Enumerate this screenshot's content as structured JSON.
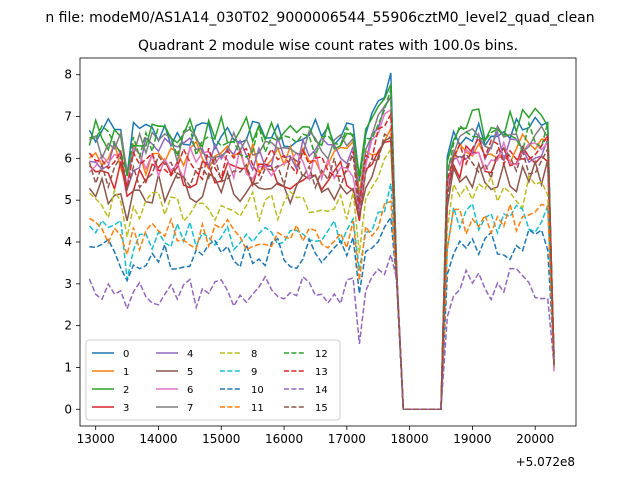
{
  "suptitle": "n file: modeM0/AS1A14_030T02_9000006544_55906cztM0_level2_quad_clean",
  "chart_data": {
    "type": "line",
    "title": "Quadrant 2 module wise count rates with 100.0s bins.",
    "xlabel": "",
    "ylabel": "",
    "x_offset_label": "+5.072e8",
    "xlim": [
      12750,
      20650
    ],
    "ylim": [
      -0.4,
      8.4
    ],
    "xticks": [
      13000,
      14000,
      15000,
      16000,
      17000,
      18000,
      19000,
      20000
    ],
    "yticks": [
      0,
      1,
      2,
      3,
      4,
      5,
      6,
      7,
      8
    ],
    "grid": false,
    "legend_position": "lower-left",
    "x_start": 12900,
    "x_step": 100,
    "gap_zero_range": [
      17900,
      18500
    ],
    "series": [
      {
        "name": "0",
        "color": "#1f77b4",
        "style": "solid",
        "base": 6.55,
        "peak": 8.0,
        "post": 6.7
      },
      {
        "name": "1",
        "color": "#ff7f0e",
        "style": "solid",
        "base": 6.0,
        "peak": 6.7,
        "post": 6.2
      },
      {
        "name": "2",
        "color": "#2ca02c",
        "style": "solid",
        "base": 6.6,
        "peak": 7.8,
        "post": 6.8
      },
      {
        "name": "3",
        "color": "#d62728",
        "style": "solid",
        "base": 5.6,
        "peak": 6.6,
        "post": 5.9
      },
      {
        "name": "4",
        "color": "#9467bd",
        "style": "solid",
        "base": 6.1,
        "peak": 7.4,
        "post": 6.3
      },
      {
        "name": "5",
        "color": "#8c564b",
        "style": "solid",
        "base": 5.3,
        "peak": 6.5,
        "post": 5.6
      },
      {
        "name": "6",
        "color": "#e377c2",
        "style": "solid",
        "base": 5.9,
        "peak": 7.2,
        "post": 6.1
      },
      {
        "name": "7",
        "color": "#7f7f7f",
        "style": "solid",
        "base": 6.3,
        "peak": 7.3,
        "post": 6.4
      },
      {
        "name": "8",
        "color": "#bcbd22",
        "style": "dashed",
        "base": 4.85,
        "peak": 6.2,
        "post": 5.2
      },
      {
        "name": "9",
        "color": "#17becf",
        "style": "dashed",
        "base": 4.2,
        "peak": 5.2,
        "post": 4.6
      },
      {
        "name": "10",
        "color": "#1f77b4",
        "style": "dashed",
        "base": 3.75,
        "peak": 4.6,
        "post": 3.95
      },
      {
        "name": "11",
        "color": "#ff7f0e",
        "style": "dashed",
        "base": 4.2,
        "peak": 4.9,
        "post": 4.55
      },
      {
        "name": "12",
        "color": "#2ca02c",
        "style": "dashed",
        "base": 6.4,
        "peak": 7.5,
        "post": 6.5
      },
      {
        "name": "13",
        "color": "#d62728",
        "style": "dashed",
        "base": 5.9,
        "peak": 7.1,
        "post": 6.2
      },
      {
        "name": "14",
        "color": "#9467bd",
        "style": "dashed",
        "base": 2.8,
        "peak": 3.5,
        "post": 3.0
      },
      {
        "name": "15",
        "color": "#8c564b",
        "style": "dashed",
        "base": 5.7,
        "peak": 6.6,
        "post": 5.9
      }
    ]
  }
}
